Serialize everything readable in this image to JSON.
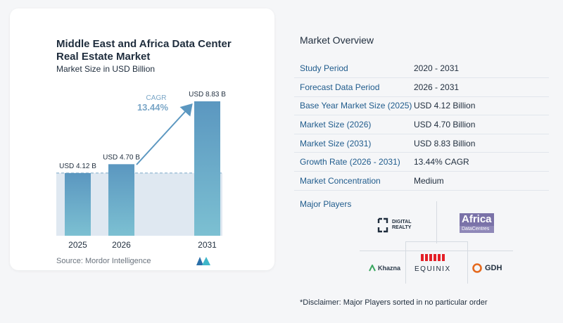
{
  "chart_data": {
    "type": "bar",
    "title": "Middle East and Africa Data Center Real Estate Market",
    "subtitle": "Market Size in USD Billion",
    "categories": [
      "2025",
      "2026",
      "2031"
    ],
    "values": [
      4.12,
      4.7,
      8.83
    ],
    "data_labels": [
      "USD 4.12 B",
      "USD 4.70 B",
      "USD 8.83 B"
    ],
    "cagr_label": "CAGR",
    "cagr_value": "13.44%",
    "ylim": [
      0,
      8.83
    ],
    "colors": {
      "bar_top": "#5b97c0",
      "bar_bottom": "#7cc0d2",
      "band": "#dfe8f1",
      "arrow": "#5b97c0"
    }
  },
  "source": "Source:  Mordor Intelligence",
  "overview": {
    "title": "Market Overview",
    "rows": [
      {
        "key": "Study Period",
        "value": "2020 - 2031"
      },
      {
        "key": "Forecast Data Period",
        "value": "2026 - 2031"
      },
      {
        "key": "Base Year Market Size (2025)",
        "value": "USD 4.12 Billion"
      },
      {
        "key": "Market Size (2026)",
        "value": "USD 4.70 Billion"
      },
      {
        "key": "Market Size (2031)",
        "value": "USD 8.83 Billion"
      },
      {
        "key": "Growth Rate (2026 - 2031)",
        "value": "13.44% CAGR"
      },
      {
        "key": "Market Concentration",
        "value": "Medium"
      }
    ]
  },
  "players": {
    "title": "Major Players",
    "digital_realty": [
      "DIGITAL",
      "REALTY"
    ],
    "africa": [
      "Africa",
      "DataCentres"
    ],
    "equinix": "EQUINIX",
    "khazna": "Khazna",
    "gdh": "GDH"
  },
  "disclaimer": "*Disclaimer: Major Players sorted in no particular order"
}
